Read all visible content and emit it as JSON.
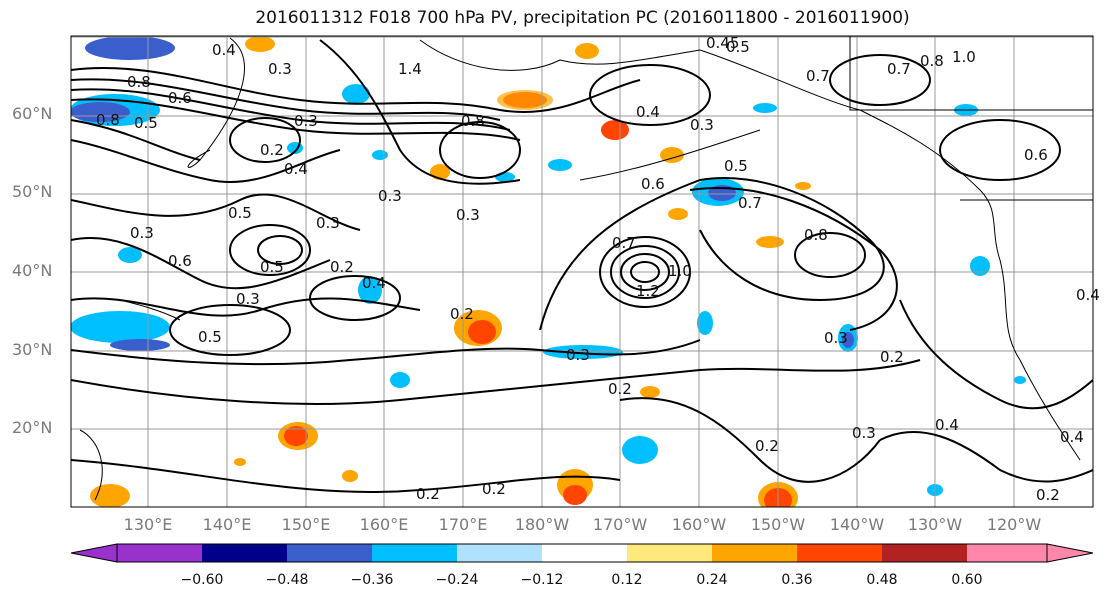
{
  "title": "2016011312 F018 700 hPa PV, precipitation PC (2016011800 - 2016011900)",
  "lat_labels": [
    "60°N",
    "50°N",
    "40°N",
    "30°N",
    "20°N"
  ],
  "lon_labels": [
    "130°E",
    "140°E",
    "150°E",
    "160°E",
    "170°E",
    "180°W",
    "170°W",
    "160°W",
    "150°W",
    "140°W",
    "130°W",
    "120°W"
  ],
  "colorbar": {
    "ticks": [
      "−0.60",
      "−0.48",
      "−0.36",
      "−0.24",
      "−0.12",
      "0.12",
      "0.24",
      "0.36",
      "0.48",
      "0.60"
    ],
    "colors": [
      "#9932cc",
      "#00008b",
      "#3a5fcd",
      "#00bfff",
      "#b0e2ff",
      "#ffffff",
      "#ffe87c",
      "#ffa500",
      "#ff4500",
      "#b22222",
      "#ff88aa"
    ]
  },
  "contour_labels": [
    "0.4",
    "0.3",
    "0.8",
    "0.6",
    "0.8",
    "0.5",
    "1.4",
    "0.8",
    "0.45",
    "0.5",
    "1.0",
    "0.8",
    "0.7",
    "0.7",
    "0.3",
    "0.4",
    "0.3",
    "0.2",
    "0.4",
    "0.3",
    "0.3",
    "0.5",
    "0.6",
    "0.7",
    "0.8",
    "0.6",
    "0.3",
    "0.6",
    "0.5",
    "0.2",
    "0.3",
    "0.4",
    "0.2",
    "0.5",
    "0.7",
    "1.2",
    "1.0",
    "0.3",
    "0.3",
    "0.2",
    "0.2",
    "0.2",
    "0.4",
    "0.2",
    "0.2",
    "0.4",
    "0.2",
    "0.3",
    "0.4",
    "0.5",
    "0.3"
  ]
}
